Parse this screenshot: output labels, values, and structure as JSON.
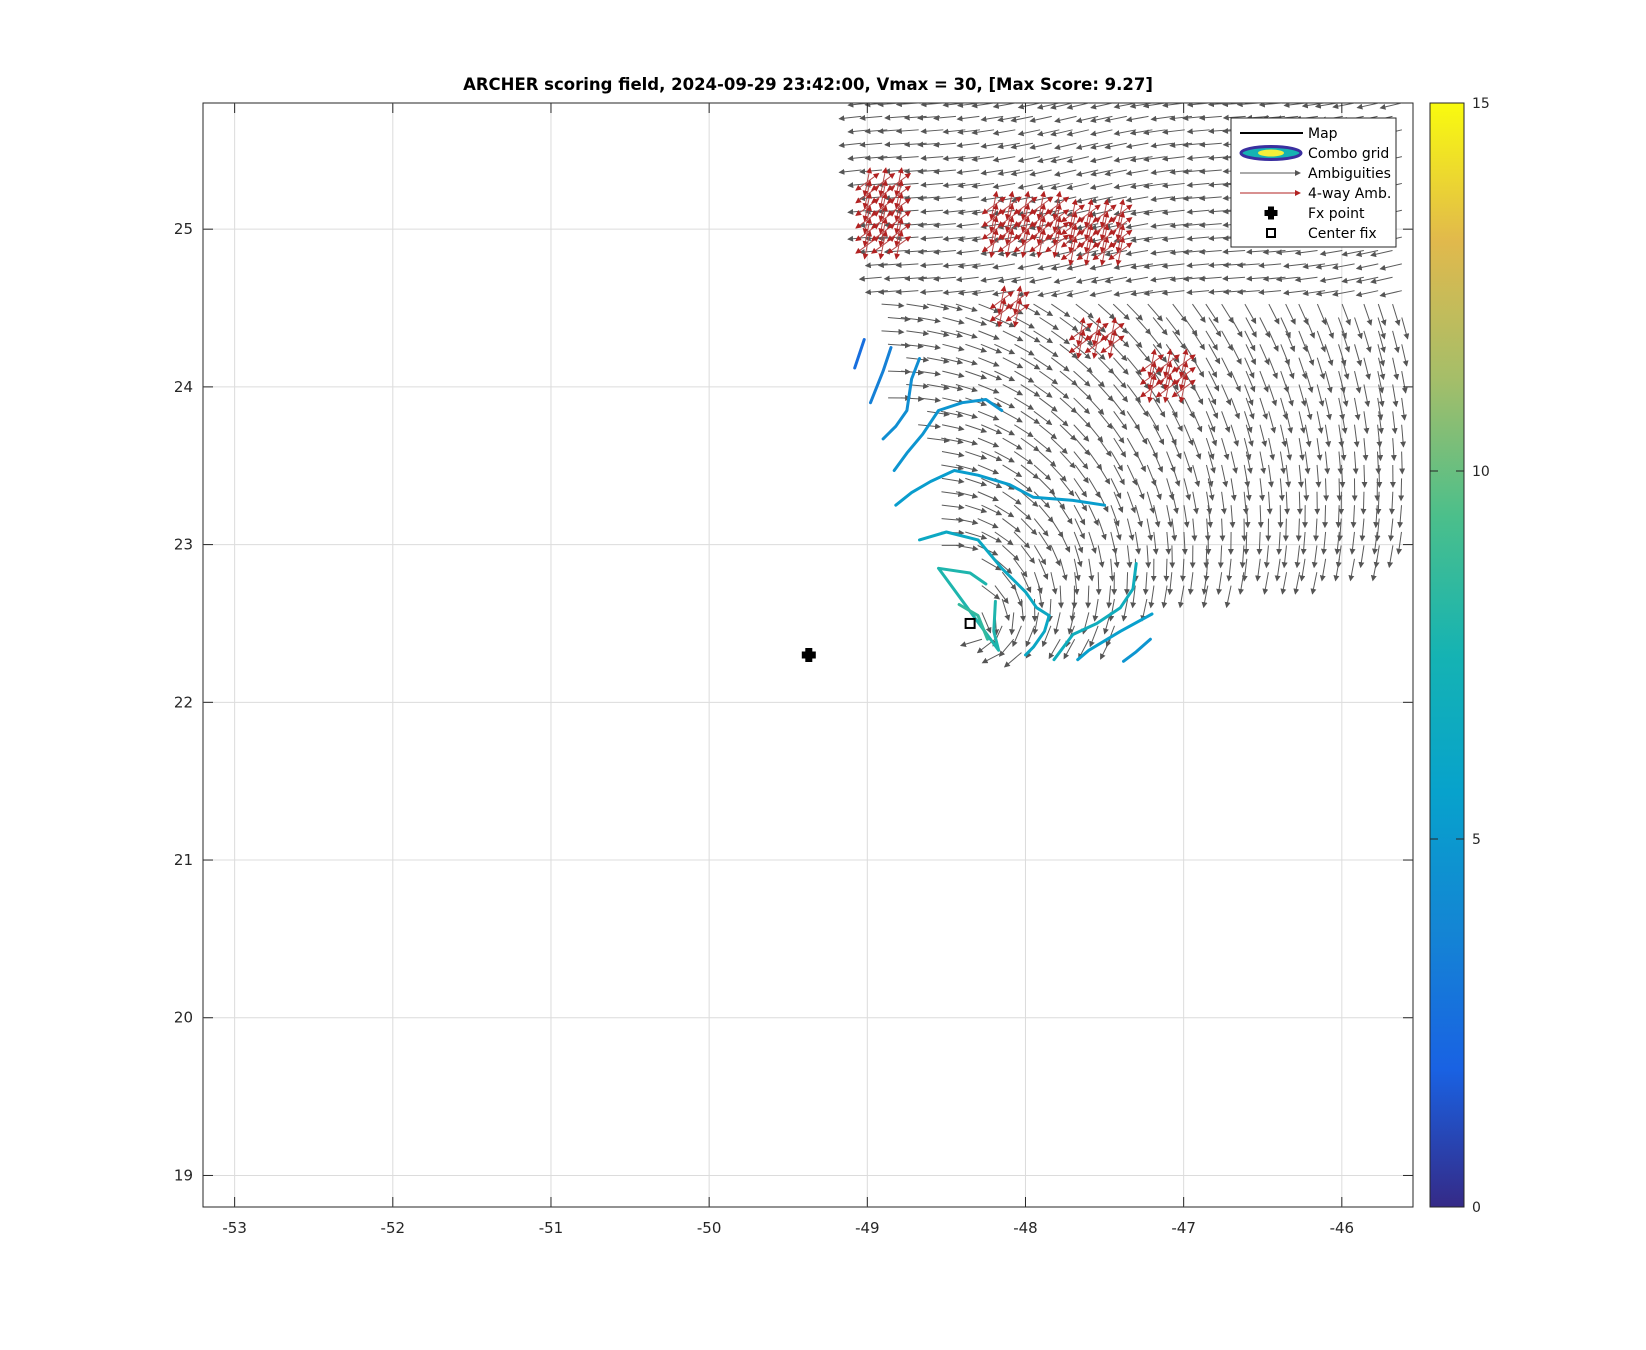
{
  "chart_data": {
    "type": "scatter",
    "title": "ARCHER scoring field, 2024-09-29 23:42:00, Vmax = 30, [Max Score: 9.27]",
    "xlabel": "",
    "ylabel": "",
    "xlim": [
      -53.2,
      -45.55
    ],
    "ylim": [
      18.8,
      25.8
    ],
    "x_ticks": [
      "-53",
      "-52",
      "-51",
      "-50",
      "-49",
      "-48",
      "-47",
      "-46"
    ],
    "y_ticks": [
      "19",
      "20",
      "21",
      "22",
      "23",
      "24",
      "25"
    ],
    "grid": true,
    "legend_position": "top-right",
    "legend": [
      "Map",
      "Combo grid",
      "Ambiguities",
      "4-way Amb.",
      "Fx point",
      "Center fix"
    ],
    "colorbar": {
      "range": [
        0,
        15
      ],
      "ticks": [
        "0",
        "5",
        "10",
        "15"
      ],
      "colormap": "parula"
    },
    "fx_point": {
      "x": -49.37,
      "y": 22.3
    },
    "center_fix": {
      "x": -48.35,
      "y": 22.5
    },
    "score_contours": [
      {
        "level": 2.5,
        "points": [
          [
            -49.02,
            24.3
          ],
          [
            -49.08,
            24.12
          ]
        ]
      },
      {
        "level": 3.5,
        "points": [
          [
            -48.85,
            24.25
          ],
          [
            -48.9,
            24.1
          ],
          [
            -48.98,
            23.9
          ]
        ]
      },
      {
        "level": 4.3,
        "points": [
          [
            -48.67,
            24.18
          ],
          [
            -48.72,
            24.05
          ],
          [
            -48.75,
            23.85
          ],
          [
            -48.82,
            23.75
          ],
          [
            -48.9,
            23.67
          ]
        ]
      },
      {
        "level": 4.8,
        "points": [
          [
            -48.15,
            23.85
          ],
          [
            -48.25,
            23.92
          ],
          [
            -48.4,
            23.9
          ],
          [
            -48.55,
            23.85
          ],
          [
            -48.65,
            23.7
          ],
          [
            -48.75,
            23.58
          ],
          [
            -48.83,
            23.47
          ]
        ]
      },
      {
        "level": 5.3,
        "points": [
          [
            -47.5,
            23.25
          ],
          [
            -47.7,
            23.28
          ],
          [
            -47.95,
            23.3
          ],
          [
            -48.1,
            23.38
          ],
          [
            -48.3,
            23.44
          ],
          [
            -48.45,
            23.47
          ],
          [
            -48.6,
            23.4
          ],
          [
            -48.72,
            23.33
          ],
          [
            -48.82,
            23.25
          ]
        ]
      },
      {
        "level": 6.3,
        "points": [
          [
            -47.85,
            22.55
          ],
          [
            -47.93,
            22.6
          ],
          [
            -48.0,
            22.7
          ],
          [
            -48.15,
            22.85
          ],
          [
            -48.3,
            23.03
          ],
          [
            -48.5,
            23.08
          ],
          [
            -48.67,
            23.03
          ]
        ]
      },
      {
        "level": 6.8,
        "points": [
          [
            -47.3,
            22.88
          ],
          [
            -47.32,
            22.72
          ],
          [
            -47.4,
            22.6
          ],
          [
            -47.55,
            22.5
          ],
          [
            -47.7,
            22.43
          ],
          [
            -47.82,
            22.27
          ]
        ]
      },
      {
        "level": 5.5,
        "points": [
          [
            -47.2,
            22.56
          ],
          [
            -47.4,
            22.45
          ],
          [
            -47.6,
            22.33
          ],
          [
            -47.67,
            22.27
          ]
        ]
      },
      {
        "level": 4.8,
        "points": [
          [
            -47.21,
            22.4
          ],
          [
            -47.3,
            22.32
          ],
          [
            -47.38,
            22.26
          ]
        ]
      },
      {
        "level": 6.2,
        "points": [
          [
            -47.85,
            22.55
          ],
          [
            -47.88,
            22.45
          ],
          [
            -47.95,
            22.35
          ],
          [
            -48.0,
            22.3
          ]
        ]
      },
      {
        "level": 7.8,
        "points": [
          [
            -48.19,
            22.64
          ],
          [
            -48.2,
            22.45
          ],
          [
            -48.17,
            22.33
          ],
          [
            -48.55,
            22.85
          ],
          [
            -48.35,
            22.82
          ],
          [
            -48.25,
            22.75
          ]
        ]
      },
      {
        "level": 8.5,
        "points": [
          [
            -48.42,
            22.62
          ],
          [
            -48.3,
            22.55
          ],
          [
            -48.24,
            22.4
          ]
        ]
      }
    ]
  }
}
